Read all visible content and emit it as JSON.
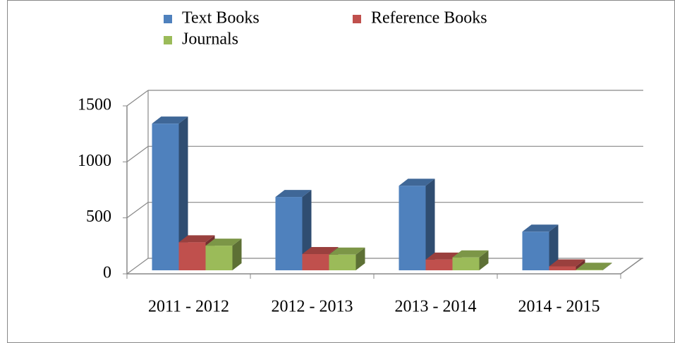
{
  "chart_data": {
    "type": "bar3d",
    "categories": [
      "2011 - 2012",
      "2012 - 2013",
      "2013 - 2014",
      "2014 - 2015"
    ],
    "series": [
      {
        "name": "Text Books",
        "color": "#4f81bd",
        "values": [
          1310,
          655,
          755,
          345
        ]
      },
      {
        "name": "Reference Books",
        "color": "#c0504d",
        "values": [
          250,
          145,
          95,
          35
        ]
      },
      {
        "name": "Journals",
        "color": "#9bbb59",
        "values": [
          220,
          140,
          115,
          5
        ]
      }
    ],
    "ylim": [
      0,
      1500
    ],
    "yticks": [
      0,
      500,
      1000,
      1500
    ],
    "grid": true,
    "legend": "top"
  }
}
